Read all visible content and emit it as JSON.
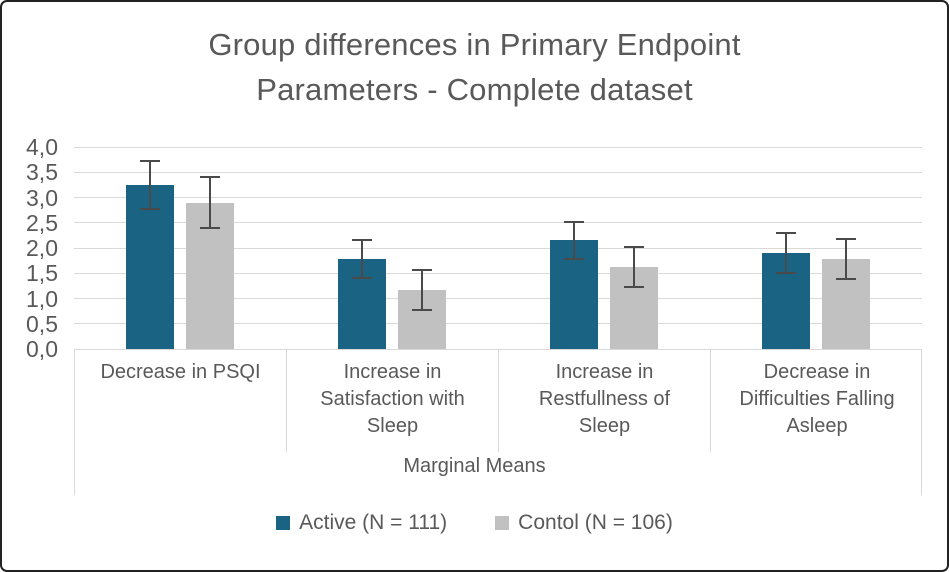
{
  "frame": {
    "background": "#ffffff",
    "border_color": "#222222"
  },
  "chart_data": {
    "type": "bar",
    "title": "Group differences in Primary Endpoint Parameters - Complete dataset",
    "title_lines": [
      "Group differences in Primary Endpoint",
      "Parameters - Complete dataset"
    ],
    "categories": [
      "Decrease in PSQI",
      "Increase in Satisfaction with Sleep",
      "Increase in Restfullness of Sleep",
      "Decrease in Difficulties Falling Asleep"
    ],
    "xlabel": "Marginal Means",
    "ylabel": "",
    "ylim": [
      0,
      4
    ],
    "ytick_step": 0.5,
    "ytick_labels": [
      "0,0",
      "0,5",
      "1,0",
      "1,5",
      "2,0",
      "2,5",
      "3,0",
      "3,5",
      "4,0"
    ],
    "decimal_separator": ",",
    "grid": true,
    "legend_position": "bottom",
    "series": [
      {
        "name": "Active (N = 111)",
        "color": "#1b6383",
        "values": [
          3.25,
          1.78,
          2.15,
          1.9
        ],
        "errors": [
          0.48,
          0.38,
          0.37,
          0.4
        ]
      },
      {
        "name": "Contol (N = 106)",
        "color": "#c1c1c1",
        "values": [
          2.9,
          1.17,
          1.62,
          1.78
        ],
        "errors": [
          0.5,
          0.39,
          0.39,
          0.39
        ]
      }
    ],
    "error_bar_color": "#4a4a4a",
    "gridline_color": "#d9d9d9",
    "text_color": "#595959"
  }
}
